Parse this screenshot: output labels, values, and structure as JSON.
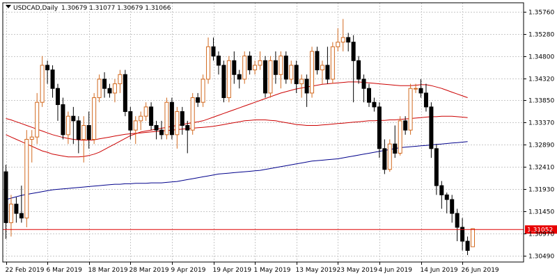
{
  "header": {
    "symbol": "USDCAD,Daily",
    "ohlc": "1.30679 1.31077 1.30679 1.31066"
  },
  "colors": {
    "bull_candle": "#d2691e",
    "bear_candle": "#000000",
    "ma_fast": "#cc0000",
    "ma_mid": "#cc0000",
    "ma_slow": "#00008b",
    "price_line": "#dd0000",
    "price_label_bg": "#e80000",
    "grid": "#c8c8c8",
    "axis": "#000000"
  },
  "chart_data": {
    "type": "candlestick",
    "symbol": "USDCAD",
    "timeframe": "Daily",
    "ylim": [
      1.3035,
      1.3595
    ],
    "y_ticks": [
      1.3576,
      1.3528,
      1.348,
      1.3432,
      1.3385,
      1.3337,
      1.3289,
      1.3241,
      1.3193,
      1.3145,
      1.3097,
      1.3049
    ],
    "y_tick_labels": [
      "1.35760",
      "1.35280",
      "1.34800",
      "1.34320",
      "1.33850",
      "1.33370",
      "1.32890",
      "1.32410",
      "1.31930",
      "1.31450",
      "1.30970",
      "1.30490"
    ],
    "x_tick_labels": [
      "22 Feb 2019",
      "6 Mar 2019",
      "18 Mar 2019",
      "28 Mar 2019",
      "9 Apr 2019",
      "19 Apr 2019",
      "1 May 2019",
      "13 May 2019",
      "23 May 2019",
      "4 Jun 2019",
      "14 Jun 2019",
      "26 Jun 2019"
    ],
    "x_tick_bars": [
      0,
      8,
      16,
      24,
      32,
      40,
      48,
      56,
      64,
      72,
      80,
      88
    ],
    "current_price": 1.31052,
    "current_price_label": "1.31052",
    "candles": [
      [
        1.323,
        1.3245,
        1.3085,
        1.312
      ],
      [
        1.312,
        1.318,
        1.309,
        1.316
      ],
      [
        1.316,
        1.3175,
        1.312,
        1.314
      ],
      [
        1.314,
        1.32,
        1.312,
        1.313
      ],
      [
        1.313,
        1.332,
        1.311,
        1.33
      ],
      [
        1.33,
        1.332,
        1.325,
        1.3305
      ],
      [
        1.3305,
        1.34,
        1.329,
        1.338
      ],
      [
        1.338,
        1.348,
        1.337,
        1.346
      ],
      [
        1.346,
        1.347,
        1.342,
        1.345
      ],
      [
        1.345,
        1.346,
        1.339,
        1.341
      ],
      [
        1.341,
        1.342,
        1.334,
        1.3375
      ],
      [
        1.3375,
        1.339,
        1.33,
        1.331
      ],
      [
        1.331,
        1.336,
        1.329,
        1.335
      ],
      [
        1.335,
        1.337,
        1.329,
        1.334
      ],
      [
        1.334,
        1.335,
        1.327,
        1.33
      ],
      [
        1.33,
        1.335,
        1.325,
        1.333
      ],
      [
        1.333,
        1.336,
        1.328,
        1.33
      ],
      [
        1.33,
        1.34,
        1.329,
        1.339
      ],
      [
        1.339,
        1.344,
        1.338,
        1.343
      ],
      [
        1.343,
        1.3445,
        1.339,
        1.341
      ],
      [
        1.341,
        1.342,
        1.339,
        1.34
      ],
      [
        1.34,
        1.343,
        1.338,
        1.342
      ],
      [
        1.342,
        1.345,
        1.34,
        1.344
      ],
      [
        1.344,
        1.345,
        1.335,
        1.336
      ],
      [
        1.336,
        1.337,
        1.33,
        1.332
      ],
      [
        1.332,
        1.335,
        1.329,
        1.334
      ],
      [
        1.334,
        1.336,
        1.332,
        1.335
      ],
      [
        1.335,
        1.338,
        1.334,
        1.337
      ],
      [
        1.337,
        1.338,
        1.332,
        1.333
      ],
      [
        1.333,
        1.334,
        1.33,
        1.332
      ],
      [
        1.332,
        1.334,
        1.33,
        1.331
      ],
      [
        1.331,
        1.339,
        1.33,
        1.338
      ],
      [
        1.338,
        1.339,
        1.33,
        1.331
      ],
      [
        1.331,
        1.337,
        1.328,
        1.336
      ],
      [
        1.336,
        1.337,
        1.331,
        1.333
      ],
      [
        1.333,
        1.334,
        1.327,
        1.332
      ],
      [
        1.332,
        1.34,
        1.331,
        1.339
      ],
      [
        1.339,
        1.34,
        1.337,
        1.338
      ],
      [
        1.338,
        1.344,
        1.337,
        1.343
      ],
      [
        1.343,
        1.352,
        1.342,
        1.35
      ],
      [
        1.35,
        1.352,
        1.347,
        1.348
      ],
      [
        1.348,
        1.349,
        1.344,
        1.346
      ],
      [
        1.346,
        1.347,
        1.338,
        1.339
      ],
      [
        1.339,
        1.348,
        1.338,
        1.347
      ],
      [
        1.347,
        1.349,
        1.342,
        1.344
      ],
      [
        1.344,
        1.345,
        1.341,
        1.343
      ],
      [
        1.343,
        1.349,
        1.342,
        1.348
      ],
      [
        1.348,
        1.349,
        1.344,
        1.345
      ],
      [
        1.345,
        1.347,
        1.344,
        1.346
      ],
      [
        1.346,
        1.349,
        1.345,
        1.347
      ],
      [
        1.347,
        1.348,
        1.339,
        1.34
      ],
      [
        1.34,
        1.348,
        1.339,
        1.347
      ],
      [
        1.347,
        1.349,
        1.342,
        1.344
      ],
      [
        1.344,
        1.349,
        1.341,
        1.348
      ],
      [
        1.348,
        1.349,
        1.342,
        1.343
      ],
      [
        1.343,
        1.347,
        1.342,
        1.346
      ],
      [
        1.346,
        1.347,
        1.34,
        1.342
      ],
      [
        1.342,
        1.344,
        1.339,
        1.343
      ],
      [
        1.343,
        1.344,
        1.337,
        1.34
      ],
      [
        1.34,
        1.35,
        1.339,
        1.349
      ],
      [
        1.349,
        1.35,
        1.344,
        1.345
      ],
      [
        1.345,
        1.347,
        1.342,
        1.346
      ],
      [
        1.346,
        1.35,
        1.342,
        1.343
      ],
      [
        1.343,
        1.351,
        1.342,
        1.35
      ],
      [
        1.35,
        1.354,
        1.349,
        1.351
      ],
      [
        1.351,
        1.356,
        1.349,
        1.352
      ],
      [
        1.352,
        1.353,
        1.349,
        1.351
      ],
      [
        1.351,
        1.3525,
        1.338,
        1.347
      ],
      [
        1.347,
        1.348,
        1.342,
        1.343
      ],
      [
        1.343,
        1.344,
        1.338,
        1.341
      ],
      [
        1.341,
        1.342,
        1.337,
        1.338
      ],
      [
        1.338,
        1.339,
        1.336,
        1.337
      ],
      [
        1.337,
        1.338,
        1.326,
        1.328
      ],
      [
        1.328,
        1.33,
        1.3225,
        1.3235
      ],
      [
        1.3235,
        1.33,
        1.323,
        1.329
      ],
      [
        1.329,
        1.333,
        1.326,
        1.327
      ],
      [
        1.327,
        1.335,
        1.3265,
        1.334
      ],
      [
        1.334,
        1.335,
        1.331,
        1.332
      ],
      [
        1.332,
        1.342,
        1.331,
        1.341
      ],
      [
        1.341,
        1.342,
        1.34,
        1.341
      ],
      [
        1.341,
        1.343,
        1.339,
        1.34
      ],
      [
        1.34,
        1.342,
        1.336,
        1.337
      ],
      [
        1.337,
        1.338,
        1.326,
        1.328
      ],
      [
        1.328,
        1.329,
        1.318,
        1.32
      ],
      [
        1.32,
        1.321,
        1.315,
        1.318
      ],
      [
        1.318,
        1.3185,
        1.314,
        1.317
      ],
      [
        1.317,
        1.318,
        1.312,
        1.314
      ],
      [
        1.314,
        1.315,
        1.308,
        1.311
      ],
      [
        1.311,
        1.313,
        1.306,
        1.308
      ],
      [
        1.308,
        1.309,
        1.305,
        1.306
      ],
      [
        1.3068,
        1.3108,
        1.3068,
        1.3107
      ]
    ],
    "moving_averages": [
      {
        "values": [
          1.331,
          1.3305,
          1.33,
          1.3295,
          1.329,
          1.3285,
          1.328,
          1.3275,
          1.3272,
          1.3268,
          1.3266,
          1.3264,
          1.3262,
          1.3262,
          1.3262,
          1.3263,
          1.3265,
          1.3268,
          1.3272,
          1.3278,
          1.3284,
          1.329,
          1.3296,
          1.3302,
          1.3308,
          1.3312,
          1.3316,
          1.3318,
          1.332,
          1.3322,
          1.3324,
          1.3326,
          1.3328,
          1.333,
          1.3332,
          1.3334,
          1.3336,
          1.3338,
          1.334,
          1.3344,
          1.3348,
          1.3352,
          1.3356,
          1.336,
          1.3364,
          1.3368,
          1.3372,
          1.3376,
          1.338,
          1.3384,
          1.3388,
          1.3392,
          1.3396,
          1.34,
          1.3403,
          1.3406,
          1.3409,
          1.3411,
          1.3413,
          1.3415,
          1.3417,
          1.3419,
          1.342,
          1.3421,
          1.3422,
          1.3423,
          1.3424,
          1.3424,
          1.3424,
          1.3423,
          1.3422,
          1.3421,
          1.342,
          1.3419,
          1.3418,
          1.3417,
          1.3416,
          1.3416,
          1.3416,
          1.3417,
          1.3418,
          1.3418,
          1.3416,
          1.3413,
          1.341,
          1.3406,
          1.3402,
          1.3398,
          1.3394,
          1.339
        ]
      },
      {
        "values": [
          1.3345,
          1.3342,
          1.3338,
          1.3334,
          1.333,
          1.3326,
          1.3322,
          1.3318,
          1.3314,
          1.331,
          1.3307,
          1.3304,
          1.3302,
          1.33,
          1.3299,
          1.3298,
          1.3298,
          1.3299,
          1.3301,
          1.3303,
          1.3305,
          1.3307,
          1.3309,
          1.3311,
          1.3312,
          1.3313,
          1.3314,
          1.3315,
          1.3316,
          1.3317,
          1.3318,
          1.3319,
          1.332,
          1.3321,
          1.3322,
          1.3323,
          1.3324,
          1.3325,
          1.3326,
          1.3327,
          1.3328,
          1.333,
          1.3332,
          1.3334,
          1.3336,
          1.3338,
          1.334,
          1.3341,
          1.3342,
          1.3342,
          1.3342,
          1.3341,
          1.334,
          1.3338,
          1.3336,
          1.3334,
          1.3332,
          1.3331,
          1.333,
          1.333,
          1.333,
          1.3331,
          1.3332,
          1.3333,
          1.3334,
          1.3335,
          1.3336,
          1.3337,
          1.3338,
          1.3339,
          1.334,
          1.334,
          1.3341,
          1.3341,
          1.3342,
          1.3342,
          1.3343,
          1.3344,
          1.3345,
          1.3346,
          1.3347,
          1.3348,
          1.3349,
          1.3349,
          1.335,
          1.335,
          1.335,
          1.3349,
          1.3348,
          1.3347
        ]
      },
      {
        "values": [
          1.317,
          1.3173,
          1.3176,
          1.3179,
          1.3181,
          1.3183,
          1.3185,
          1.3187,
          1.3189,
          1.3191,
          1.3192,
          1.3193,
          1.3194,
          1.3195,
          1.3196,
          1.3197,
          1.3198,
          1.3199,
          1.32,
          1.3201,
          1.3202,
          1.3203,
          1.3203,
          1.3204,
          1.3204,
          1.3205,
          1.3205,
          1.3205,
          1.3206,
          1.3206,
          1.3206,
          1.3207,
          1.3208,
          1.3209,
          1.3211,
          1.3213,
          1.3215,
          1.3217,
          1.3219,
          1.3221,
          1.3223,
          1.3225,
          1.3226,
          1.3227,
          1.3228,
          1.3229,
          1.323,
          1.3231,
          1.3232,
          1.3233,
          1.3235,
          1.3237,
          1.3239,
          1.3241,
          1.3243,
          1.3245,
          1.3247,
          1.3249,
          1.3251,
          1.3253,
          1.3254,
          1.3255,
          1.3256,
          1.3257,
          1.3258,
          1.326,
          1.3262,
          1.3264,
          1.3266,
          1.3268,
          1.327,
          1.3272,
          1.3274,
          1.3276,
          1.3278,
          1.328,
          1.3282,
          1.3283,
          1.3284,
          1.3285,
          1.3286,
          1.3287,
          1.3288,
          1.3289,
          1.329,
          1.3291,
          1.3292,
          1.3293,
          1.3294,
          1.3295
        ]
      }
    ],
    "grid": true
  }
}
